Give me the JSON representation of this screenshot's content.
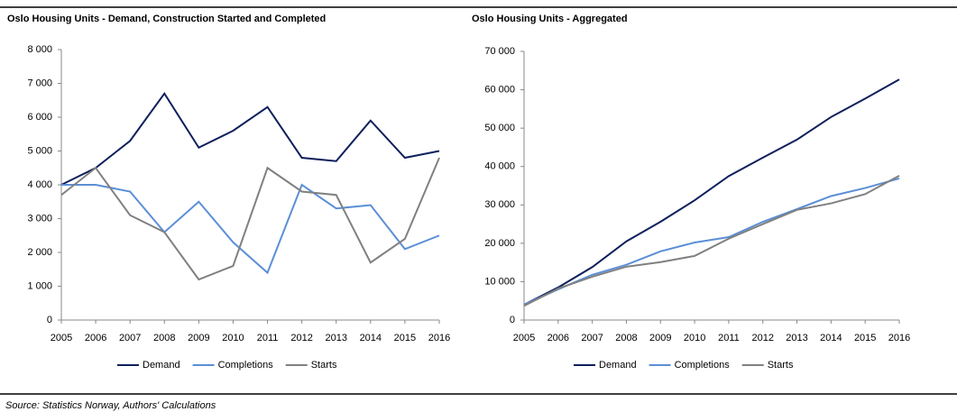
{
  "chart_data": [
    {
      "type": "line",
      "title": "Oslo Housing Units - Demand, Construction Started and Completed",
      "categories": [
        "2005",
        "2006",
        "2007",
        "2008",
        "2009",
        "2010",
        "2011",
        "2012",
        "2013",
        "2014",
        "2015",
        "2016"
      ],
      "series": [
        {
          "name": "Demand",
          "color": "#0d1f5c",
          "values": [
            4000,
            4500,
            5300,
            6700,
            5100,
            5600,
            6300,
            4800,
            4700,
            5900,
            4800,
            5000
          ]
        },
        {
          "name": "Completions",
          "color": "#5b8fd6",
          "values": [
            4000,
            4000,
            3800,
            2600,
            3500,
            2300,
            1400,
            4000,
            3300,
            3400,
            2100,
            2500
          ]
        },
        {
          "name": "Starts",
          "color": "#808080",
          "values": [
            3700,
            4500,
            3100,
            2600,
            1200,
            1600,
            4500,
            3800,
            3700,
            1700,
            2400,
            4800
          ]
        }
      ],
      "ylim": [
        0,
        8000
      ],
      "yticks": [
        0,
        {
          "value": 1000,
          "label": "1 000"
        },
        {
          "value": 2000,
          "label": "2 000"
        },
        {
          "value": 3000,
          "label": "3 000"
        },
        {
          "value": 4000,
          "label": "4 000"
        },
        {
          "value": 5000,
          "label": "5 000"
        },
        {
          "value": 6000,
          "label": "6 000"
        },
        {
          "value": 7000,
          "label": "7 000"
        },
        {
          "value": 8000,
          "label": "8 000"
        }
      ],
      "grid": false,
      "legend": "bottom"
    },
    {
      "type": "line",
      "title": "Oslo Housing Units - Aggregated",
      "categories": [
        "2005",
        "2006",
        "2007",
        "2008",
        "2009",
        "2010",
        "2011",
        "2012",
        "2013",
        "2014",
        "2015",
        "2016"
      ],
      "series": [
        {
          "name": "Demand",
          "color": "#0d1f5c",
          "values": [
            4000,
            8500,
            13800,
            20500,
            25600,
            31200,
            37500,
            42300,
            47000,
            52900,
            57700,
            62700
          ]
        },
        {
          "name": "Completions",
          "color": "#5b8fd6",
          "values": [
            4000,
            8000,
            11800,
            14400,
            17900,
            20200,
            21600,
            25600,
            28900,
            32300,
            34400,
            36900
          ]
        },
        {
          "name": "Starts",
          "color": "#808080",
          "values": [
            3700,
            8200,
            11300,
            13900,
            15100,
            16700,
            21200,
            25000,
            28700,
            30400,
            32800,
            37600
          ]
        }
      ],
      "ylim": [
        0,
        70000
      ],
      "yticks": [
        0,
        {
          "value": 10000,
          "label": "10 000"
        },
        {
          "value": 20000,
          "label": "20 000"
        },
        {
          "value": 30000,
          "label": "30 000"
        },
        {
          "value": 40000,
          "label": "40 000"
        },
        {
          "value": 50000,
          "label": "50 000"
        },
        {
          "value": 60000,
          "label": "60 000"
        },
        {
          "value": 70000,
          "label": "70 000"
        }
      ],
      "grid": false,
      "legend": "bottom"
    }
  ],
  "source": "Source: Statistics Norway, Authors' Calculations"
}
